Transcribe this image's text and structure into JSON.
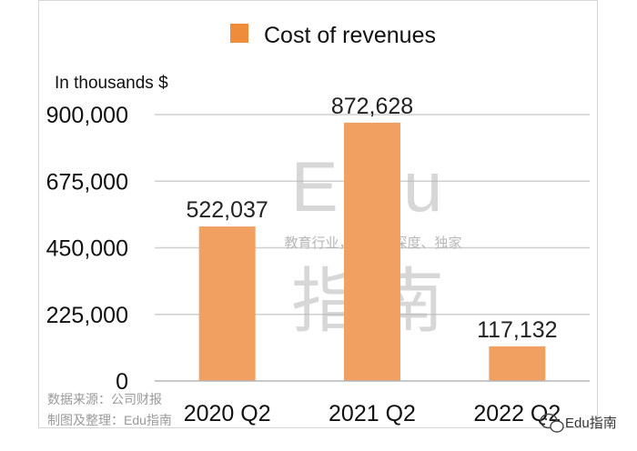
{
  "chart_data": {
    "type": "bar",
    "categories": [
      "2020 Q2",
      "2021 Q2",
      "2022 Q2"
    ],
    "series": [
      {
        "name": "Cost of revenues",
        "values": [
          522037,
          872628,
          117132
        ]
      }
    ],
    "data_labels": [
      "522,037",
      "872,628",
      "117,132"
    ],
    "ylabel": "In thousands $",
    "ylim": [
      0,
      900000
    ],
    "yticks": [
      0,
      225000,
      450000,
      675000,
      900000
    ],
    "ytick_labels": [
      "0",
      "225,000",
      "450,000",
      "675,000",
      "900,000"
    ],
    "grid": true,
    "legend_position": "top-center",
    "bar_color": "#f2a062",
    "legend_color": "#ef8c3c"
  },
  "footer": {
    "line1": "数据来源：公司财报",
    "line2": "制图及整理：Edu指南"
  },
  "watermark": {
    "brand": "Edu",
    "tagline": "教育行业，前沿、深度、独家",
    "chars": "指南"
  },
  "brand_badge": {
    "text": "Edu指南",
    "icon": "wechat-icon"
  }
}
